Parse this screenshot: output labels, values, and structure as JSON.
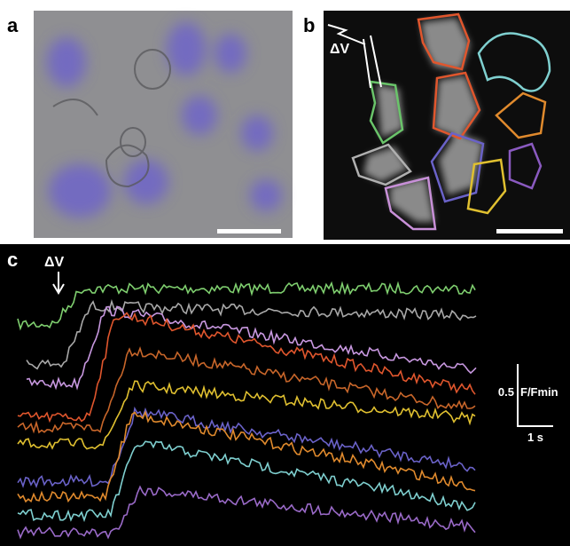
{
  "panels": [
    {
      "label": "a"
    },
    {
      "label": "b",
      "annotation": "ΔV"
    },
    {
      "label": "c",
      "annotation": "ΔV",
      "scale_bar": {
        "y_value": 0.5,
        "y_unit": "F/Fmin",
        "x": "1 s"
      }
    }
  ]
}
